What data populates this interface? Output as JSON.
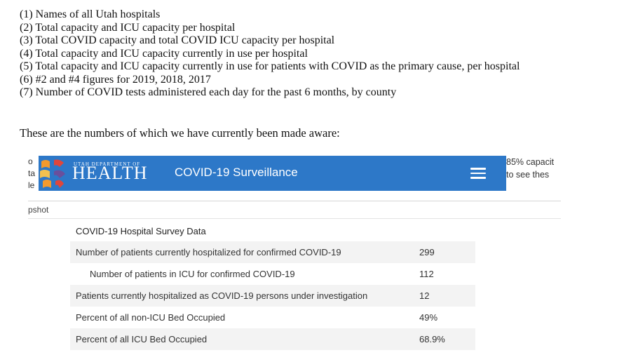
{
  "requests": [
    "(1) Names of all Utah hospitals",
    "(2) Total capacity and ICU capacity per hospital",
    "(3) Total COVID capacity and total COVID ICU capacity per hospital",
    "(4) Total capacity and ICU capacity currently in use per hospital",
    "(5) Total capacity and ICU capacity currently in use for patients with COVID as the primary cause, per hospital",
    "(6) #2 and #4 figures for 2019, 2018, 2017",
    "(7) Number of COVID tests administered each day for the past 6 months, by county"
  ],
  "intro": "These are the numbers of which we have currently been made aware:",
  "screenshot": {
    "edge_left": [
      "o",
      "ta",
      "le"
    ],
    "edge_right": [
      "85% capacit",
      "to see thes"
    ],
    "logo_small": "UTAH DEPARTMENT OF",
    "logo_big": "HEALTH",
    "banner_title": "COVID-19 Surveillance",
    "snapshot_label": "pshot",
    "survey_title": "COVID-19 Hospital Survey Data",
    "rows": [
      {
        "label": "Number of patients currently hospitalized for confirmed COVID-19",
        "value": "299"
      },
      {
        "label": "Number of patients in ICU for confirmed COVID-19",
        "value": "112"
      },
      {
        "label": "Patients currently hospitalized as COVID-19 persons under investigation",
        "value": "12"
      },
      {
        "label": "Percent of all non-ICU Bed Occupied",
        "value": "49%"
      },
      {
        "label": "Percent of all ICU Bed Occupied",
        "value": "68.9%"
      }
    ],
    "colors": {
      "banner": "#2d78c8",
      "logo_orange": "#f29a2e",
      "logo_red": "#e0463b",
      "logo_purple": "#6a4f9c"
    }
  }
}
